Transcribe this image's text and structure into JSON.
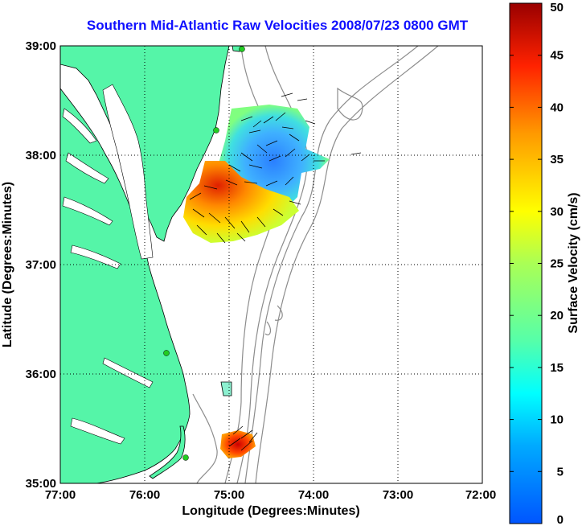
{
  "title": "Southern Mid-Atlantic Raw Velocities 2008/07/23 0800 GMT",
  "xaxis": {
    "label": "Longitude (Degrees:Minutes)",
    "ticks": [
      "77:00",
      "76:00",
      "75:00",
      "74:00",
      "73:00",
      "72:00"
    ]
  },
  "yaxis": {
    "label": "Latitude (Degrees:Minutes)",
    "ticks": [
      "39:00",
      "38:00",
      "37:00",
      "36:00",
      "35:00"
    ]
  },
  "colorbar": {
    "label": "Surface Velocity (cm/s)",
    "ticks": [
      "50",
      "45",
      "40",
      "35",
      "30",
      "25",
      "20",
      "15",
      "10",
      "5",
      "0"
    ],
    "min": 0,
    "max": 50
  },
  "colors": {
    "title": "#1010ff",
    "land": "#55f5a8",
    "bathymetry": "#8c8c8c",
    "station": "#22cc22"
  }
}
